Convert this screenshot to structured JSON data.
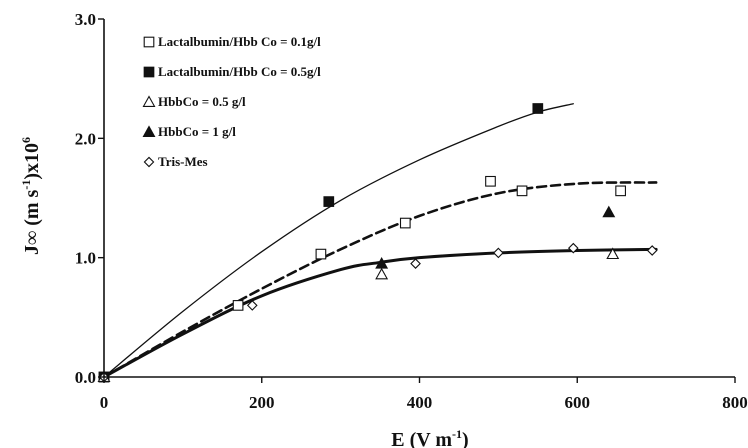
{
  "chart_data": {
    "type": "scatter",
    "xlabel": "E (V m",
    "xlabel_sup": "-1",
    "xlabel_end": ")",
    "ylabel": "J∞ (m s",
    "ylabel_sup": "-1",
    "ylabel_end": ")x10",
    "ylabel_sup2": "6",
    "xlim": [
      0,
      800
    ],
    "ylim": [
      0,
      3.0
    ],
    "xticks": [
      "0",
      "200",
      "400",
      "600",
      "800"
    ],
    "xtick_values": [
      0,
      200,
      400,
      600,
      800
    ],
    "yticks": [
      "0.0",
      "1.0",
      "2.0",
      "3.0"
    ],
    "ytick_values": [
      0,
      1,
      2,
      3
    ],
    "grid": false,
    "legend_position": "top-left",
    "series": [
      {
        "name": "Lactalbumin/Hbb Co = 0.1g/l",
        "marker": "square-open",
        "points": [
          [
            0,
            0
          ],
          [
            170,
            0.6
          ],
          [
            275,
            1.03
          ],
          [
            382,
            1.29
          ],
          [
            490,
            1.64
          ],
          [
            530,
            1.56
          ],
          [
            655,
            1.56
          ]
        ]
      },
      {
        "name": "Lactalbumin/Hbb Co = 0.5g/l",
        "marker": "square-filled",
        "points": [
          [
            0,
            0
          ],
          [
            285,
            1.47
          ],
          [
            550,
            2.25
          ]
        ]
      },
      {
        "name": "HbbCo = 0.5 g/l",
        "marker": "triangle-open",
        "points": [
          [
            0,
            0
          ],
          [
            352,
            0.86
          ],
          [
            645,
            1.03
          ]
        ]
      },
      {
        "name": "HbbCo = 1 g/l",
        "marker": "triangle-filled",
        "points": [
          [
            352,
            0.95
          ],
          [
            640,
            1.38
          ]
        ]
      },
      {
        "name": "Tris-Mes",
        "marker": "diamond-open",
        "points": [
          [
            0,
            0
          ],
          [
            188,
            0.6
          ],
          [
            395,
            0.95
          ],
          [
            500,
            1.04
          ],
          [
            595,
            1.08
          ],
          [
            695,
            1.06
          ]
        ]
      }
    ],
    "curves": [
      {
        "style": "thin-solid",
        "points": [
          [
            0,
            0
          ],
          [
            100,
            0.55
          ],
          [
            200,
            1.05
          ],
          [
            300,
            1.48
          ],
          [
            400,
            1.82
          ],
          [
            500,
            2.1
          ],
          [
            550,
            2.22
          ],
          [
            595,
            2.29
          ]
        ]
      },
      {
        "style": "dashed",
        "points": [
          [
            0,
            0
          ],
          [
            100,
            0.38
          ],
          [
            200,
            0.74
          ],
          [
            300,
            1.07
          ],
          [
            400,
            1.35
          ],
          [
            500,
            1.54
          ],
          [
            600,
            1.62
          ],
          [
            700,
            1.63
          ]
        ]
      },
      {
        "style": "thick-solid",
        "points": [
          [
            0,
            0
          ],
          [
            100,
            0.36
          ],
          [
            200,
            0.68
          ],
          [
            300,
            0.9
          ],
          [
            350,
            0.96
          ],
          [
            400,
            1.0
          ],
          [
            500,
            1.04
          ],
          [
            600,
            1.06
          ],
          [
            700,
            1.07
          ]
        ]
      }
    ]
  }
}
